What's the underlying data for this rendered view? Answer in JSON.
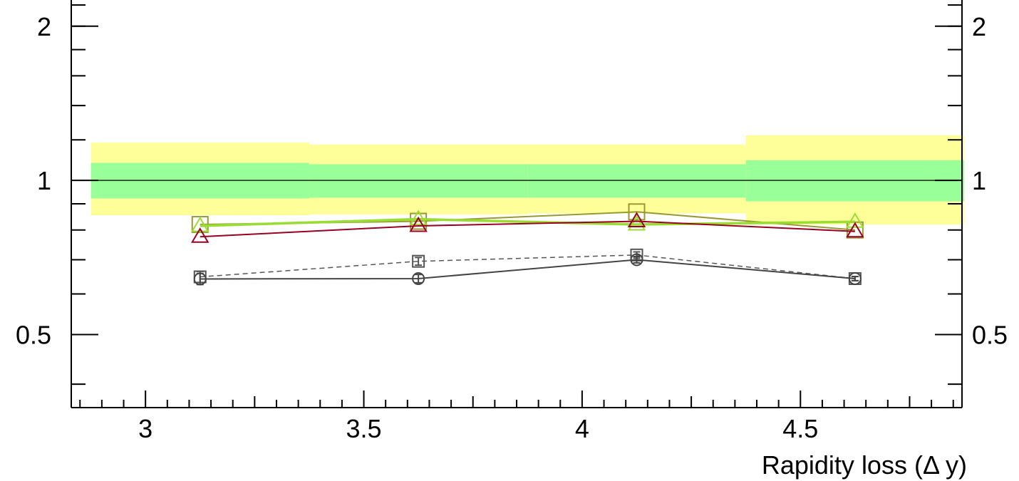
{
  "chart_data": {
    "type": "line",
    "xlabel": "Rapidity loss (Δ y)",
    "ylabel": "",
    "xlim": [
      2.83,
      4.87
    ],
    "ylim": [
      0.36,
      2.25
    ],
    "y_scale": "log",
    "grid": false,
    "x_ticks": [
      {
        "value": 3.0,
        "label": "3"
      },
      {
        "value": 3.5,
        "label": "3.5"
      },
      {
        "value": 4.0,
        "label": "4"
      },
      {
        "value": 4.5,
        "label": "4.5"
      }
    ],
    "y_ticks": [
      {
        "value": 0.5,
        "label": "0.5"
      },
      {
        "value": 1.0,
        "label": "1"
      },
      {
        "value": 2.0,
        "label": "2"
      }
    ],
    "reference_line": 1.0,
    "bands": [
      {
        "x0": 2.875,
        "x1": 3.375,
        "outer": [
          0.855,
          1.185
        ],
        "inner": [
          0.922,
          1.082
        ],
        "outer_color": "#ffff99",
        "inner_color": "#99ff99"
      },
      {
        "x0": 3.375,
        "x1": 3.875,
        "outer": [
          0.858,
          1.175
        ],
        "inner": [
          0.925,
          1.075
        ],
        "outer_color": "#ffff99",
        "inner_color": "#99ff99"
      },
      {
        "x0": 3.875,
        "x1": 4.375,
        "outer": [
          0.862,
          1.175
        ],
        "inner": [
          0.925,
          1.075
        ],
        "outer_color": "#ffff99",
        "inner_color": "#99ff99"
      },
      {
        "x0": 4.375,
        "x1": 4.875,
        "outer": [
          0.82,
          1.225
        ],
        "inner": [
          0.91,
          1.095
        ],
        "outer_color": "#ffff99",
        "inner_color": "#99ff99"
      }
    ],
    "x": [
      3.125,
      3.625,
      4.125,
      4.625
    ],
    "series": [
      {
        "values": [
          0.82,
          0.832,
          0.868,
          0.8
        ],
        "color": "#999933",
        "marker": "square",
        "line": "solid",
        "width": 2
      },
      {
        "values": [
          0.815,
          0.84,
          0.82,
          0.83
        ],
        "color": "#99dd33",
        "marker": "triangle",
        "line": "solid",
        "width": 3.5
      },
      {
        "values": [
          0.776,
          0.815,
          0.832,
          0.795
        ],
        "color": "#990022",
        "marker": "triangle",
        "line": "solid",
        "width": 2
      },
      {
        "values": [
          0.648,
          0.695,
          0.715,
          0.643
        ],
        "color": "#555555",
        "marker": "square-small",
        "line": "dashed",
        "width": 1.5,
        "errors": [
          0.016,
          0.012,
          0.01,
          0.006
        ]
      },
      {
        "values": [
          0.642,
          0.643,
          0.7,
          0.643
        ],
        "color": "#444444",
        "marker": "circle",
        "line": "solid",
        "width": 2,
        "errors": [
          0.016,
          0.012,
          0.01,
          0.006
        ]
      }
    ]
  }
}
